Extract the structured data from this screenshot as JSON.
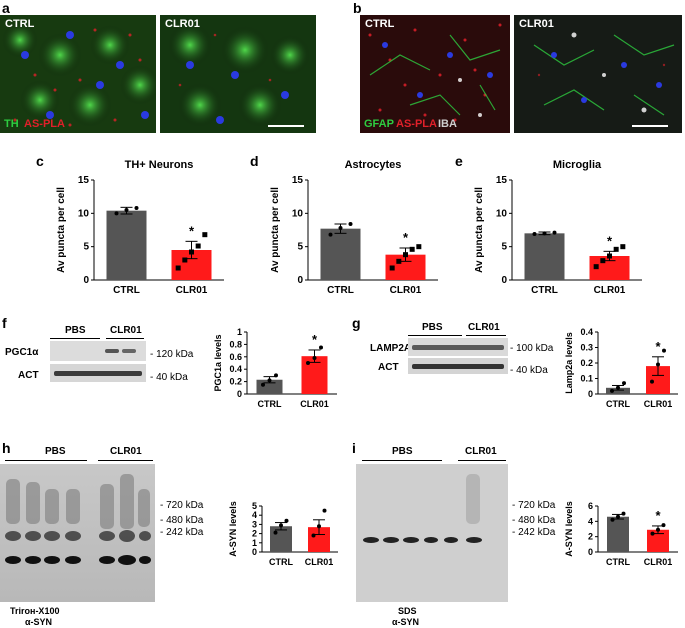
{
  "panel_letters": [
    "a",
    "b",
    "c",
    "d",
    "e",
    "f",
    "g",
    "h",
    "i"
  ],
  "panel_a": {
    "left_label": "CTRL",
    "right_label": "CLR01",
    "stain_th": "TH",
    "stain_pla": "AS-PLA"
  },
  "panel_b": {
    "left_label": "CTRL",
    "right_label": "CLR01",
    "stain_gfap": "GFAP",
    "stain_pla": "AS-PLA",
    "stain_iba": "IBA"
  },
  "blot_f": {
    "group1": "PBS",
    "group2": "CLR01",
    "row1": "PGC1α",
    "row2": "ACT",
    "mw1": "- 120 kDa",
    "mw2": "- 40 kDa"
  },
  "blot_g": {
    "group1": "PBS",
    "group2": "CLR01",
    "row1": "LAMP2A",
    "row2": "ACT",
    "mw1": "- 100 kDa",
    "mw2": "- 40 kDa"
  },
  "blot_h": {
    "group1": "PBS",
    "group2": "CLR01",
    "mw1": "- 720 kDa",
    "mw2": "- 480 kDa",
    "mw3": "- 242 kDa",
    "caption1": "Trirон-X100",
    "caption2": "α-SYN"
  },
  "blot_i": {
    "group1": "PBS",
    "group2": "CLR01",
    "mw1": "- 720 kDa",
    "mw2": "- 480 kDa",
    "mw3": "- 242 kDa",
    "caption1": "SDS",
    "caption2": "α-SYN"
  },
  "colors": {
    "ctrl": "#555555",
    "clr01": "#ff1a1a",
    "th_green": "#2ecc40",
    "pla_red": "#e0202a",
    "nuclei_blue": "#2233dd"
  },
  "chart_data": [
    {
      "id": "c",
      "type": "bar",
      "title": "TH+ Neurons",
      "ylabel": "Av puncta per cell",
      "categories": [
        "CTRL",
        "CLR01"
      ],
      "values": [
        10.4,
        4.5
      ],
      "errors": [
        0.5,
        1.3
      ],
      "ylim": [
        0,
        15
      ],
      "yticks": [
        0,
        5,
        10,
        15
      ],
      "points": [
        [
          10.0,
          10.5,
          10.8
        ],
        [
          1.8,
          3.0,
          4.2,
          5.1,
          6.8
        ]
      ],
      "significance": "*"
    },
    {
      "id": "d",
      "type": "bar",
      "title": "Astrocytes",
      "ylabel": "Av puncta per cell",
      "categories": [
        "CTRL",
        "CLR01"
      ],
      "values": [
        7.7,
        3.8
      ],
      "errors": [
        0.7,
        1.0
      ],
      "ylim": [
        0,
        15
      ],
      "yticks": [
        0,
        5,
        10,
        15
      ],
      "points": [
        [
          6.8,
          7.8,
          8.4
        ],
        [
          1.8,
          2.8,
          3.8,
          4.6,
          5.0
        ]
      ],
      "significance": "*"
    },
    {
      "id": "e",
      "type": "bar",
      "title": "Microglia",
      "ylabel": "Av puncta per cell",
      "categories": [
        "CTRL",
        "CLR01"
      ],
      "values": [
        7.0,
        3.6
      ],
      "errors": [
        0.2,
        0.7
      ],
      "ylim": [
        0,
        15
      ],
      "yticks": [
        0,
        5,
        10,
        15
      ],
      "points": [
        [
          6.9,
          7.0,
          7.1
        ],
        [
          2.0,
          2.9,
          3.6,
          4.6,
          5.0
        ]
      ],
      "significance": "*"
    },
    {
      "id": "f",
      "type": "bar",
      "title": "",
      "ylabel": "PGC1a levels",
      "categories": [
        "CTRL",
        "CLR01"
      ],
      "values": [
        0.23,
        0.61
      ],
      "errors": [
        0.05,
        0.1
      ],
      "ylim": [
        0,
        1.0
      ],
      "yticks": [
        0,
        0.2,
        0.4,
        0.6,
        0.8,
        1
      ],
      "points": [
        [
          0.15,
          0.22,
          0.3
        ],
        [
          0.5,
          0.58,
          0.75
        ]
      ],
      "significance": "*"
    },
    {
      "id": "g",
      "type": "bar",
      "title": "",
      "ylabel": "Lamp2a levels",
      "categories": [
        "CTRL",
        "CLR01"
      ],
      "values": [
        0.04,
        0.18
      ],
      "errors": [
        0.015,
        0.06
      ],
      "ylim": [
        0,
        0.4
      ],
      "yticks": [
        0,
        0.1,
        0.2,
        0.3,
        0.4
      ],
      "points": [
        [
          0.02,
          0.04,
          0.07
        ],
        [
          0.08,
          0.19,
          0.28
        ]
      ],
      "significance": "*"
    },
    {
      "id": "h",
      "type": "bar",
      "title": "",
      "ylabel": "A-SYN levels",
      "categories": [
        "CTRL",
        "CLR01"
      ],
      "values": [
        2.8,
        2.7
      ],
      "errors": [
        0.4,
        0.8
      ],
      "ylim": [
        0,
        5
      ],
      "yticks": [
        0,
        1,
        2,
        3,
        4,
        5
      ],
      "points": [
        [
          2.1,
          2.9,
          3.4
        ],
        [
          1.8,
          2.8,
          4.5
        ]
      ],
      "significance": ""
    },
    {
      "id": "i",
      "type": "bar",
      "title": "",
      "ylabel": "A-SYN levels",
      "categories": [
        "CTRL",
        "CLR01"
      ],
      "values": [
        4.6,
        2.9
      ],
      "errors": [
        0.3,
        0.5
      ],
      "ylim": [
        0,
        6
      ],
      "yticks": [
        0,
        2,
        4,
        6
      ],
      "points": [
        [
          4.2,
          4.6,
          5.0
        ],
        [
          2.4,
          2.9,
          3.5
        ]
      ],
      "significance": "*"
    }
  ]
}
